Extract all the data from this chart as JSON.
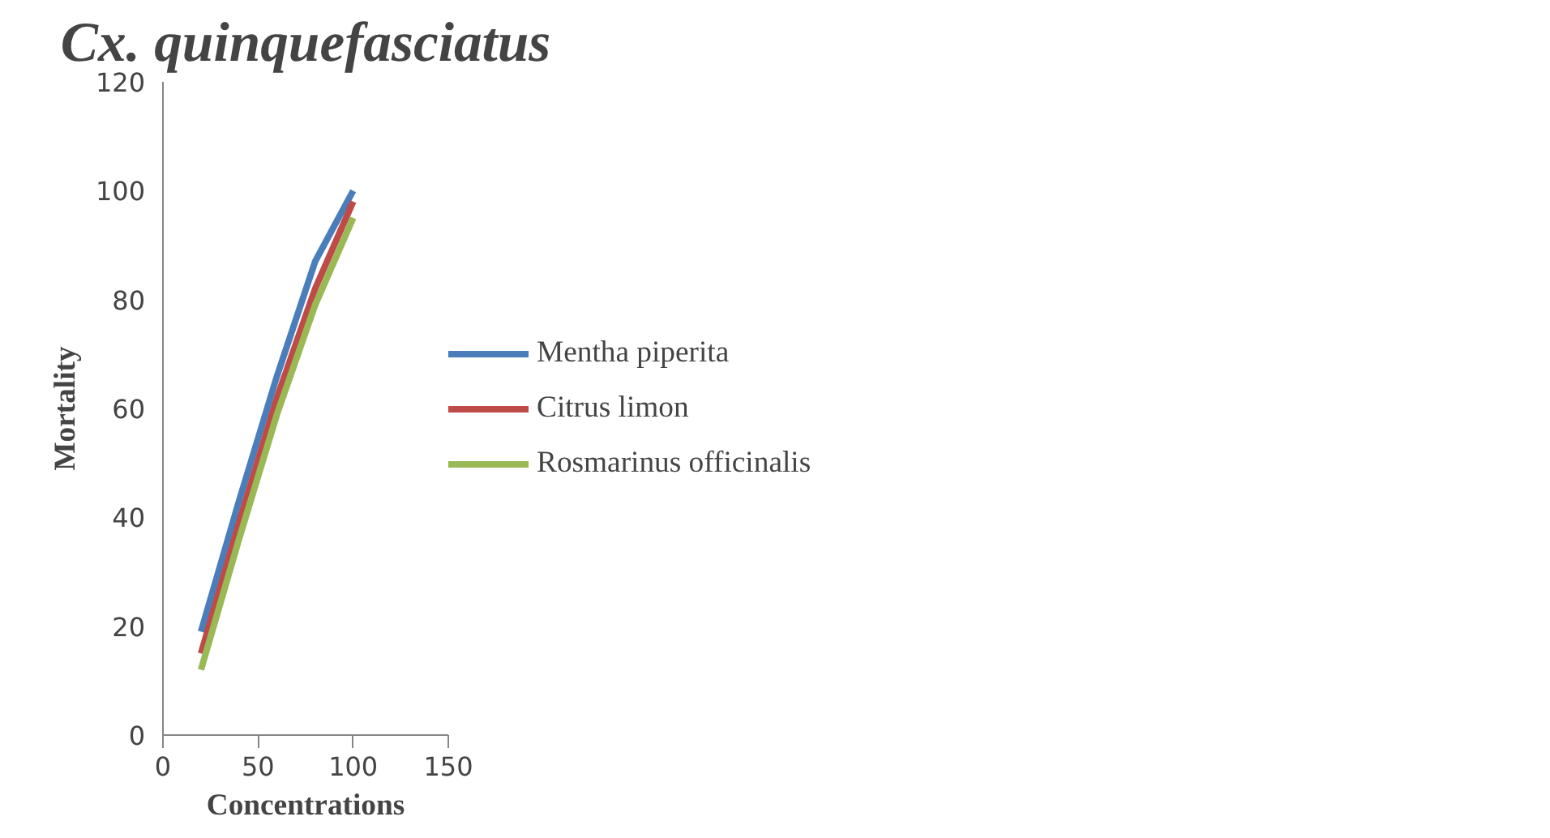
{
  "chart_data": {
    "type": "line",
    "title": "Cx. quinquefasciatus",
    "xlabel": "Concentrations",
    "ylabel": "Mortality",
    "x": [
      20,
      40,
      60,
      80,
      100
    ],
    "series": [
      {
        "name": "Mentha piperita",
        "color": "#4a7ebb",
        "values": [
          19,
          43,
          66,
          87,
          100
        ]
      },
      {
        "name": "Citrus limon",
        "color": "#be4b48",
        "values": [
          15,
          39,
          62,
          82,
          98
        ]
      },
      {
        "name": "Rosmarinus officinalis",
        "color": "#98b954",
        "values": [
          12,
          36,
          59,
          79,
          95
        ]
      }
    ],
    "xlim": [
      0,
      150
    ],
    "xticks": [
      0,
      50,
      100,
      150
    ],
    "ylim": [
      0,
      120
    ],
    "yticks": [
      0,
      20,
      40,
      60,
      80,
      100,
      120
    ],
    "grid": false,
    "legend": "right",
    "marker": "none",
    "line_style": "solid"
  }
}
